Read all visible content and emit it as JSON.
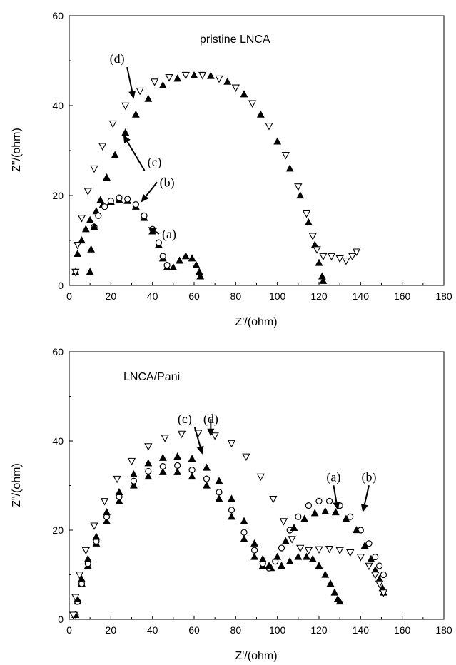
{
  "chart_data": [
    {
      "type": "scatter",
      "title": "pristine LNCA",
      "xlabel": "Z'/(ohm)",
      "ylabel": "Z\"/(ohm)",
      "xlim": [
        0,
        180
      ],
      "ylim": [
        0,
        60
      ],
      "xticks": [
        "0",
        "20",
        "40",
        "60",
        "80",
        "100",
        "120",
        "140",
        "160",
        "180"
      ],
      "yticks": [
        "0",
        "20",
        "40",
        "60"
      ],
      "grid": false,
      "series": [
        {
          "name": "(a)",
          "marker": "filled-triangle",
          "points": [
            [
              3,
              3
            ],
            [
              4,
              7
            ],
            [
              6,
              10
            ],
            [
              8,
              12.5
            ],
            [
              10,
              14.5
            ],
            [
              13,
              16.5
            ],
            [
              16,
              17.8
            ],
            [
              20,
              18.6
            ],
            [
              24,
              19
            ],
            [
              28,
              18.8
            ],
            [
              32,
              17.5
            ],
            [
              36,
              15
            ],
            [
              40,
              12
            ],
            [
              43,
              9
            ],
            [
              45,
              6
            ],
            [
              47,
              4
            ],
            [
              50,
              4
            ],
            [
              53,
              5.5
            ],
            [
              56,
              6.5
            ],
            [
              59,
              6
            ],
            [
              61,
              4.5
            ],
            [
              62.5,
              3
            ],
            [
              63,
              2
            ]
          ]
        },
        {
          "name": "(b)",
          "marker": "open-circle",
          "points": [
            [
              12,
              13
            ],
            [
              14,
              15.5
            ],
            [
              17,
              17.5
            ],
            [
              20,
              18.8
            ],
            [
              24,
              19.5
            ],
            [
              28,
              19.2
            ],
            [
              32,
              18
            ],
            [
              36,
              15.5
            ],
            [
              40,
              12.5
            ],
            [
              43,
              9.5
            ],
            [
              45,
              6.5
            ],
            [
              47,
              4.5
            ]
          ]
        },
        {
          "name": "(c)",
          "marker": "filled-triangle",
          "points": [
            [
              10,
              3
            ],
            [
              10.5,
              8
            ],
            [
              12,
              13
            ],
            [
              15,
              19
            ],
            [
              18,
              24
            ],
            [
              22,
              29
            ],
            [
              27,
              34
            ],
            [
              32,
              38
            ],
            [
              38,
              41.5
            ],
            [
              45,
              44.5
            ],
            [
              52,
              46
            ],
            [
              60,
              46.7
            ],
            [
              68,
              46.6
            ],
            [
              76,
              45.3
            ],
            [
              84,
              42.5
            ],
            [
              92,
              38
            ],
            [
              100,
              32
            ],
            [
              106,
              26
            ],
            [
              111,
              20
            ],
            [
              115,
              14
            ],
            [
              118,
              9
            ],
            [
              120,
              5
            ],
            [
              121.5,
              2
            ],
            [
              122,
              1
            ]
          ]
        },
        {
          "name": "(d)",
          "marker": "open-triangle",
          "points": [
            [
              3,
              3
            ],
            [
              4,
              9
            ],
            [
              6,
              15
            ],
            [
              9,
              21
            ],
            [
              12,
              26
            ],
            [
              16,
              31
            ],
            [
              21,
              36
            ],
            [
              27,
              40
            ],
            [
              34,
              43.3
            ],
            [
              41,
              45.3
            ],
            [
              48,
              46.3
            ],
            [
              56,
              46.8
            ],
            [
              64,
              46.8
            ],
            [
              72,
              46
            ],
            [
              80,
              44
            ],
            [
              88,
              40.5
            ],
            [
              96,
              35.5
            ],
            [
              104,
              29
            ],
            [
              110,
              22
            ],
            [
              114,
              16
            ],
            [
              117,
              11
            ],
            [
              119,
              8
            ],
            [
              122,
              6.5
            ],
            [
              126,
              6.5
            ],
            [
              130,
              6
            ],
            [
              133,
              5.5
            ],
            [
              136,
              6.5
            ],
            [
              138,
              7.5
            ]
          ]
        }
      ]
    },
    {
      "type": "scatter",
      "title": "LNCA/Pani",
      "xlabel": "Z'/(ohm)",
      "ylabel": "Z\"/(ohm)",
      "xlim": [
        0,
        180
      ],
      "ylim": [
        0,
        60
      ],
      "xticks": [
        "0",
        "20",
        "40",
        "60",
        "80",
        "100",
        "120",
        "140",
        "160",
        "180"
      ],
      "yticks": [
        "0",
        "20",
        "40",
        "60"
      ],
      "grid": false,
      "series": [
        {
          "name": "(a)",
          "marker": "filled-triangle",
          "points": [
            [
              3,
              1
            ],
            [
              4,
              4
            ],
            [
              6,
              8
            ],
            [
              9,
              12
            ],
            [
              13,
              17
            ],
            [
              18,
              22
            ],
            [
              24,
              26.5
            ],
            [
              31,
              30
            ],
            [
              38,
              32
            ],
            [
              45,
              33
            ],
            [
              52,
              33
            ],
            [
              59,
              32
            ],
            [
              66,
              30
            ],
            [
              72,
              27
            ],
            [
              78,
              23
            ],
            [
              84,
              18
            ],
            [
              89,
              14
            ],
            [
              93,
              12
            ],
            [
              97,
              11.5
            ],
            [
              102,
              12
            ],
            [
              106,
              13
            ],
            [
              110,
              14
            ],
            [
              114,
              14
            ],
            [
              117,
              13.5
            ],
            [
              120,
              12
            ],
            [
              123,
              10
            ],
            [
              125.5,
              8
            ],
            [
              127.5,
              6
            ],
            [
              129,
              4.5
            ],
            [
              130,
              4
            ]
          ]
        },
        {
          "name": "(b)",
          "marker": "open-circle",
          "points": [
            [
              3,
              1
            ],
            [
              4,
              4
            ],
            [
              6,
              8
            ],
            [
              9,
              12.5
            ],
            [
              13,
              17.5
            ],
            [
              18,
              23
            ],
            [
              24,
              27.5
            ],
            [
              31,
              31
            ],
            [
              38,
              33.2
            ],
            [
              45,
              34.3
            ],
            [
              52,
              34.5
            ],
            [
              59,
              33.5
            ],
            [
              66,
              31.5
            ],
            [
              72,
              28.5
            ],
            [
              78,
              24.5
            ],
            [
              84,
              19.5
            ],
            [
              89,
              15.5
            ],
            [
              93,
              12.5
            ],
            [
              96,
              11.5
            ],
            [
              99,
              13
            ],
            [
              102,
              16
            ],
            [
              106,
              20
            ],
            [
              110,
              23
            ],
            [
              115,
              25.5
            ],
            [
              120,
              26.5
            ],
            [
              125,
              26.5
            ],
            [
              130,
              25.5
            ],
            [
              135,
              23
            ],
            [
              140,
              20
            ],
            [
              144,
              17
            ],
            [
              147,
              14
            ],
            [
              149,
              12
            ],
            [
              151,
              10
            ]
          ]
        },
        {
          "name": "(c)",
          "marker": "filled-triangle",
          "points": [
            [
              3,
              1
            ],
            [
              4,
              4.5
            ],
            [
              6,
              9
            ],
            [
              9,
              13.5
            ],
            [
              13,
              18.5
            ],
            [
              18,
              24
            ],
            [
              24,
              28.5
            ],
            [
              31,
              32.5
            ],
            [
              38,
              35
            ],
            [
              45,
              36.2
            ],
            [
              52,
              36.5
            ],
            [
              59,
              36
            ],
            [
              66,
              34
            ],
            [
              72,
              31
            ],
            [
              78,
              27
            ],
            [
              84,
              22
            ],
            [
              89,
              17
            ],
            [
              93,
              13.5
            ],
            [
              96,
              12
            ],
            [
              100,
              14
            ],
            [
              104,
              17.5
            ],
            [
              108,
              20.5
            ],
            [
              113,
              22.5
            ],
            [
              118,
              23.8
            ],
            [
              123,
              24.2
            ],
            [
              128,
              24
            ],
            [
              133,
              22.5
            ],
            [
              138,
              20
            ],
            [
              142,
              16.5
            ],
            [
              145,
              13.5
            ],
            [
              147,
              11
            ],
            [
              149,
              9
            ],
            [
              150.5,
              7
            ],
            [
              151,
              6
            ]
          ]
        },
        {
          "name": "(d)",
          "marker": "open-triangle",
          "points": [
            [
              2,
              1
            ],
            [
              3,
              5
            ],
            [
              5,
              10
            ],
            [
              8,
              15.5
            ],
            [
              12,
              21
            ],
            [
              17,
              26.5
            ],
            [
              23,
              31.5
            ],
            [
              30,
              35.5
            ],
            [
              38,
              38.8
            ],
            [
              46,
              40.7
            ],
            [
              54,
              41.6
            ],
            [
              62,
              41.8
            ],
            [
              70,
              41.2
            ],
            [
              78,
              39.5
            ],
            [
              85,
              36.5
            ],
            [
              92,
              32
            ],
            [
              98,
              27
            ],
            [
              103,
              22
            ],
            [
              107,
              18
            ],
            [
              111,
              16
            ],
            [
              115,
              15.5
            ],
            [
              120,
              15.7
            ],
            [
              125,
              15.8
            ],
            [
              130,
              15.5
            ],
            [
              135,
              15
            ],
            [
              140,
              14
            ],
            [
              144,
              12
            ],
            [
              147,
              10
            ],
            [
              149,
              8
            ],
            [
              151,
              6
            ]
          ]
        }
      ]
    }
  ],
  "annotations": [
    [
      {
        "label": "(d)",
        "tx": 23,
        "ty": 49.5,
        "hx": 31,
        "hy": 41.5
      },
      {
        "label": "(c)",
        "tx": 41,
        "ty": 26.5,
        "hx": 26,
        "hy": 33.5
      },
      {
        "label": "(b)",
        "tx": 47,
        "ty": 22,
        "hx": 34.5,
        "hy": 18.5
      },
      {
        "label": "(a)",
        "tx": 48,
        "ty": 10.5,
        "hx": 38,
        "hy": 13
      }
    ],
    [
      {
        "label": "(c)",
        "tx": 55.5,
        "ty": 44,
        "hx": 64,
        "hy": 37
      },
      {
        "label": "(d)",
        "tx": 68,
        "ty": 44,
        "hx": 68,
        "hy": 41
      },
      {
        "label": "(a)",
        "tx": 127,
        "ty": 31,
        "hx": 129,
        "hy": 24.5
      },
      {
        "label": "(b)",
        "tx": 144,
        "ty": 31,
        "hx": 141,
        "hy": 24
      }
    ]
  ]
}
